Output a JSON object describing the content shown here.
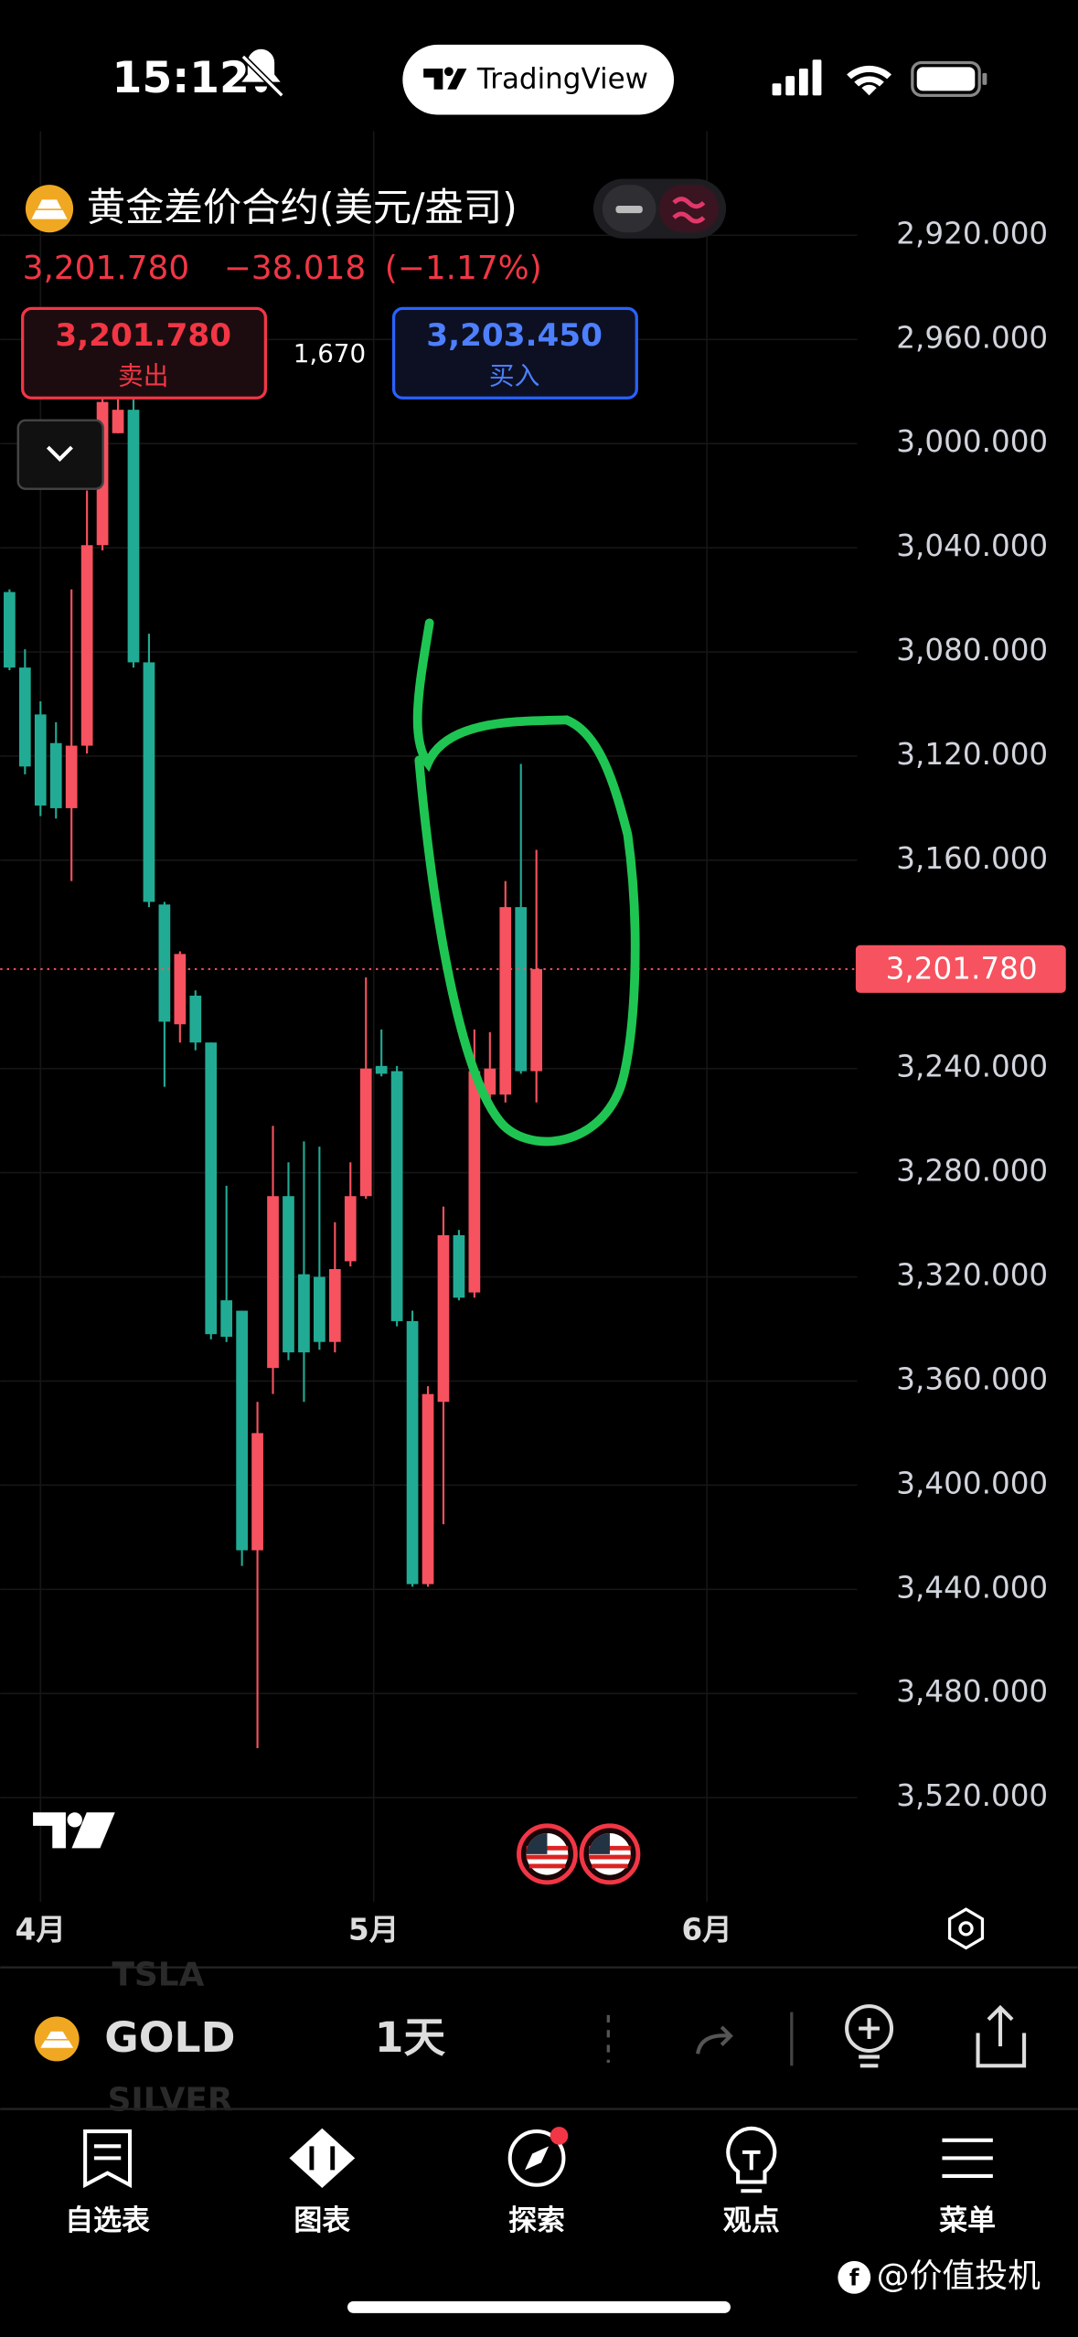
{
  "status_bar": {
    "time": "15:12",
    "app": "TradingView"
  },
  "symbol": {
    "name": "黄金差价合约(美元/盎司)",
    "price": "3,201.780",
    "change": "−38.018",
    "change_pct": "(−1.17%)"
  },
  "order": {
    "sell_price": "3,201.780",
    "sell_label": "卖出",
    "spread": "1,670",
    "buy_price": "3,203.450",
    "buy_label": "买入"
  },
  "chart_data": {
    "type": "candlestick",
    "categories": [
      null,
      null,
      null,
      null,
      null,
      null,
      null,
      null,
      null,
      null,
      null,
      null,
      null,
      null,
      null,
      null,
      null,
      null,
      null,
      null,
      null,
      null,
      null,
      null,
      null,
      null,
      null,
      null,
      null,
      null,
      null,
      null,
      null,
      null,
      null
    ],
    "open": [
      3057,
      3086,
      3104,
      3115,
      3140,
      3116,
      3039,
      2996,
      2987,
      3084,
      3177,
      3223,
      3212,
      3230,
      3329,
      3333,
      3425,
      3355,
      3289,
      3319,
      3320,
      3345,
      3314,
      3289,
      3239,
      3241,
      3337,
      3438,
      3368,
      3304,
      3326,
      3250,
      3250,
      3178,
      3241
    ],
    "high": [
      3087,
      3127,
      3143,
      3144,
      3168,
      3119,
      3041,
      2996,
      3086,
      3178,
      3247,
      3230,
      3233,
      3344,
      3345,
      3431,
      3501,
      3365,
      3352,
      3368,
      3348,
      3349,
      3316,
      3290,
      3243,
      3339,
      3439,
      3439,
      3415,
      3329,
      3328,
      3252,
      3253,
      3242,
      3253
    ],
    "low": [
      3056,
      3079,
      3099,
      3107,
      3056,
      3018,
      2978,
      2983,
      2983,
      3073,
      3176,
      3195,
      3210,
      3230,
      3285,
      3333,
      3368,
      3262,
      3276,
      3268,
      3270,
      3299,
      3276,
      3205,
      3225,
      3239,
      3333,
      3362,
      3293,
      3302,
      3225,
      3226,
      3168,
      3123,
      3156
    ],
    "close": [
      3086,
      3124,
      3139,
      3140,
      3116,
      3039,
      2984,
      2987,
      3084,
      3176,
      3222,
      3196,
      3230,
      3342,
      3343,
      3425,
      3380,
      3289,
      3349,
      3349,
      3345,
      3317,
      3289,
      3240,
      3242,
      3337,
      3438,
      3365,
      3304,
      3328,
      3241,
      3240,
      3178,
      3241,
      3201.78
    ],
    "up_color": "#22ab94",
    "down_color": "#f7525f",
    "inverted": true,
    "grid": true,
    "ylim": [
      2880,
      3560
    ],
    "yticks": [
      {
        "value": 2920,
        "label": "2,920.000"
      },
      {
        "value": 2960,
        "label": "2,960.000"
      },
      {
        "value": 3000,
        "label": "3,000.000"
      },
      {
        "value": 3040,
        "label": "3,040.000"
      },
      {
        "value": 3080,
        "label": "3,080.000"
      },
      {
        "value": 3120,
        "label": "3,120.000"
      },
      {
        "value": 3160,
        "label": "3,160.000"
      },
      {
        "value": 3240,
        "label": "3,240.000"
      },
      {
        "value": 3280,
        "label": "3,280.000"
      },
      {
        "value": 3320,
        "label": "3,320.000"
      },
      {
        "value": 3360,
        "label": "3,360.000"
      },
      {
        "value": 3400,
        "label": "3,400.000"
      },
      {
        "value": 3440,
        "label": "3,440.000"
      },
      {
        "value": 3480,
        "label": "3,480.000"
      },
      {
        "value": 3520,
        "label": "3,520.000"
      }
    ],
    "xlim": [
      -0.6,
      54.7
    ],
    "xticks": [
      {
        "value": 2,
        "label": "4月"
      },
      {
        "value": 23.5,
        "label": "5月"
      },
      {
        "value": 45,
        "label": "6月"
      }
    ],
    "last_price": 3201.78,
    "last_price_label": "3,201.780"
  },
  "toolbar": {
    "symbol": "GOLD",
    "interval": "1天",
    "ghost_above": "TSLA",
    "ghost_below": "SILVER"
  },
  "tabs": [
    "自选表",
    "图表",
    "探索",
    "观点",
    "菜单"
  ],
  "watermark": "@价值投机"
}
